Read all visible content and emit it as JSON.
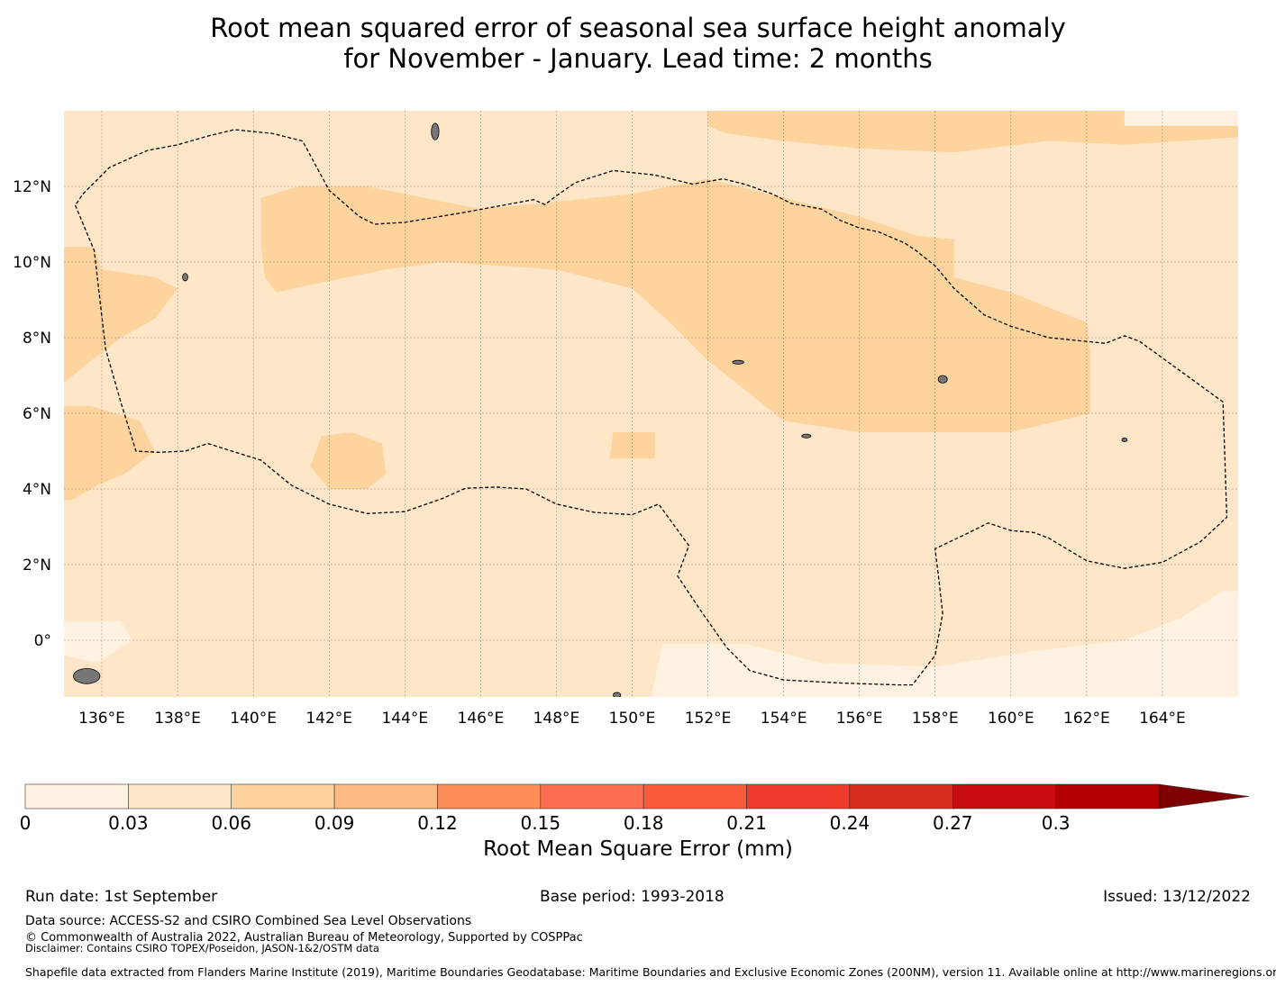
{
  "title": {
    "line1": "Root mean squared error of seasonal sea surface height anomaly",
    "line2": "for November - January. Lead time: 2 months"
  },
  "map": {
    "lon_range": [
      135,
      166
    ],
    "lat_range": [
      -1.5,
      14
    ],
    "lon_ticks": [
      {
        "value": 136,
        "label": "136°E"
      },
      {
        "value": 138,
        "label": "138°E"
      },
      {
        "value": 140,
        "label": "140°E"
      },
      {
        "value": 142,
        "label": "142°E"
      },
      {
        "value": 144,
        "label": "144°E"
      },
      {
        "value": 146,
        "label": "146°E"
      },
      {
        "value": 148,
        "label": "148°E"
      },
      {
        "value": 150,
        "label": "150°E"
      },
      {
        "value": 152,
        "label": "152°E"
      },
      {
        "value": 154,
        "label": "154°E"
      },
      {
        "value": 156,
        "label": "156°E"
      },
      {
        "value": 158,
        "label": "158°E"
      },
      {
        "value": 160,
        "label": "160°E"
      },
      {
        "value": 162,
        "label": "162°E"
      },
      {
        "value": 164,
        "label": "164°E"
      }
    ],
    "lat_ticks": [
      {
        "value": 12,
        "label": "12°N"
      },
      {
        "value": 10,
        "label": "10°N"
      },
      {
        "value": 8,
        "label": "8°N"
      },
      {
        "value": 6,
        "label": "6°N"
      },
      {
        "value": 4,
        "label": "4°N"
      },
      {
        "value": 2,
        "label": "2°N"
      },
      {
        "value": 0,
        "label": "0°"
      }
    ],
    "colors": {
      "bin_0_03": "#fff2e0",
      "bin_03_06": "#fee7c8",
      "bin_06_09": "#fdd49e",
      "land": "#777777",
      "boundary": "#000000",
      "grid": "#555555"
    },
    "field_regions": [
      {
        "bin": "bin_06_09",
        "points": [
          [
            140.2,
            11.7
          ],
          [
            141.2,
            12.0
          ],
          [
            143,
            12.0
          ],
          [
            146,
            11.4
          ],
          [
            150,
            11.8
          ],
          [
            152,
            12.2
          ],
          [
            154,
            11.7
          ],
          [
            156,
            11.2
          ],
          [
            157.5,
            10.7
          ],
          [
            158.5,
            10.6
          ],
          [
            158.5,
            9.6
          ],
          [
            160,
            9.2
          ],
          [
            162,
            8.4
          ],
          [
            162.1,
            7.6
          ],
          [
            162.1,
            6.0
          ],
          [
            160,
            5.5
          ],
          [
            157,
            5.5
          ],
          [
            156,
            5.5
          ],
          [
            154,
            5.8
          ],
          [
            153,
            6.6
          ],
          [
            152,
            7.4
          ],
          [
            151,
            8.4
          ],
          [
            150,
            9.3
          ],
          [
            148,
            9.8
          ],
          [
            145,
            10.0
          ],
          [
            143.5,
            9.8
          ],
          [
            142,
            9.5
          ],
          [
            140.6,
            9.2
          ],
          [
            140.3,
            9.6
          ],
          [
            140.2,
            10.5
          ]
        ]
      },
      {
        "bin": "bin_06_09",
        "points": [
          [
            135,
            10.4
          ],
          [
            135.8,
            10.4
          ],
          [
            136,
            9.8
          ],
          [
            137.4,
            9.6
          ],
          [
            138,
            9.3
          ],
          [
            137.4,
            8.5
          ],
          [
            136.5,
            8.0
          ],
          [
            135.6,
            7.3
          ],
          [
            135,
            6.8
          ]
        ]
      },
      {
        "bin": "bin_06_09",
        "points": [
          [
            135,
            6.2
          ],
          [
            135.7,
            6.2
          ],
          [
            137,
            5.8
          ],
          [
            137.4,
            5.0
          ],
          [
            136.6,
            4.4
          ],
          [
            135.9,
            4.1
          ],
          [
            135.2,
            3.7
          ],
          [
            135,
            3.7
          ]
        ]
      },
      {
        "bin": "bin_06_09",
        "points": [
          [
            141.8,
            5.4
          ],
          [
            142.6,
            5.5
          ],
          [
            143.4,
            5.2
          ],
          [
            143.5,
            4.4
          ],
          [
            143,
            4.0
          ],
          [
            142,
            4.0
          ],
          [
            141.5,
            4.6
          ]
        ]
      },
      {
        "bin": "bin_06_09",
        "points": [
          [
            149.5,
            5.5
          ],
          [
            150.6,
            5.5
          ],
          [
            150.6,
            4.8
          ],
          [
            149.4,
            4.8
          ]
        ]
      },
      {
        "bin": "bin_06_09",
        "points": [
          [
            152,
            14
          ],
          [
            166,
            14
          ],
          [
            166,
            13.3
          ],
          [
            163,
            13.1
          ],
          [
            161,
            13.2
          ],
          [
            158.5,
            12.9
          ],
          [
            156,
            13.0
          ],
          [
            154,
            13.2
          ],
          [
            152.5,
            13.4
          ],
          [
            152,
            13.6
          ]
        ]
      },
      {
        "bin": "bin_0_03",
        "points": [
          [
            135,
            0.5
          ],
          [
            136.5,
            0.5
          ],
          [
            136.8,
            0.0
          ],
          [
            135.9,
            -0.6
          ],
          [
            135,
            -0.4
          ]
        ]
      },
      {
        "bin": "bin_0_03",
        "points": [
          [
            150.8,
            -0.1
          ],
          [
            153,
            -0.1
          ],
          [
            155,
            -0.6
          ],
          [
            158,
            -0.7
          ],
          [
            160.5,
            -0.3
          ],
          [
            163,
            0.0
          ],
          [
            164.5,
            0.6
          ],
          [
            165.6,
            1.3
          ],
          [
            166,
            1.3
          ],
          [
            166,
            -1.5
          ],
          [
            150.5,
            -1.5
          ]
        ]
      },
      {
        "bin": "bin_0_03",
        "points": [
          [
            163,
            13.6
          ],
          [
            166,
            13.6
          ],
          [
            166,
            14
          ],
          [
            163,
            14
          ]
        ]
      }
    ],
    "eez_boundaries": [
      [
        [
          135.3,
          11.5
        ],
        [
          135.8,
          10.3
        ],
        [
          136.1,
          7.7
        ],
        [
          136.5,
          6.3
        ],
        [
          136.9,
          5.0
        ],
        [
          137.5,
          4.97
        ],
        [
          138.2,
          5.0
        ],
        [
          138.8,
          5.2
        ],
        [
          140.2,
          4.76
        ],
        [
          141,
          4.1
        ],
        [
          142,
          3.6
        ],
        [
          143,
          3.35
        ],
        [
          144,
          3.4
        ],
        [
          145,
          3.75
        ],
        [
          145.6,
          4.02
        ],
        [
          146.4,
          4.05
        ],
        [
          147.2,
          4.0
        ],
        [
          148,
          3.6
        ],
        [
          149,
          3.38
        ],
        [
          150,
          3.32
        ],
        [
          150.7,
          3.6
        ],
        [
          151.5,
          2.5
        ],
        [
          151.2,
          1.7
        ],
        [
          151.8,
          0.8
        ],
        [
          152.5,
          -0.2
        ],
        [
          153.1,
          -0.8
        ],
        [
          154,
          -1.05
        ],
        [
          155.5,
          -1.13
        ],
        [
          157,
          -1.18
        ],
        [
          157.4,
          -1.18
        ],
        [
          158,
          -0.4
        ],
        [
          158.2,
          0.7
        ],
        [
          158.1,
          1.6
        ],
        [
          158,
          2.42
        ],
        [
          158.8,
          2.8
        ],
        [
          159.4,
          3.1
        ],
        [
          160,
          2.9
        ],
        [
          160.6,
          2.85
        ],
        [
          161,
          2.7
        ],
        [
          162,
          2.1
        ],
        [
          163,
          1.9
        ],
        [
          164,
          2.06
        ],
        [
          165,
          2.6
        ],
        [
          165.7,
          3.25
        ],
        [
          165.6,
          6.3
        ],
        [
          164.5,
          7.1
        ],
        [
          163.4,
          7.9
        ],
        [
          163,
          8.05
        ],
        [
          162.5,
          7.85
        ],
        [
          161,
          8.0
        ],
        [
          160,
          8.3
        ],
        [
          159.3,
          8.6
        ],
        [
          158.5,
          9.3
        ],
        [
          158,
          9.9
        ],
        [
          157.5,
          10.3
        ],
        [
          157.2,
          10.5
        ],
        [
          156.5,
          10.8
        ],
        [
          156,
          10.9
        ],
        [
          155.5,
          11.1
        ],
        [
          155,
          11.4
        ],
        [
          154.2,
          11.55
        ],
        [
          153.7,
          11.8
        ],
        [
          153,
          12.05
        ],
        [
          152.4,
          12.2
        ],
        [
          151.6,
          12.06
        ],
        [
          150.6,
          12.3
        ],
        [
          149.5,
          12.42
        ],
        [
          148.5,
          12.1
        ],
        [
          148,
          11.75
        ],
        [
          147.7,
          11.52
        ],
        [
          147.4,
          11.65
        ],
        [
          145.5,
          11.3
        ],
        [
          144,
          11.05
        ],
        [
          143.2,
          11.0
        ],
        [
          142.8,
          11.2
        ],
        [
          142,
          11.9
        ],
        [
          141.3,
          13.2
        ],
        [
          140.5,
          13.4
        ],
        [
          139.5,
          13.5
        ],
        [
          138.8,
          13.33
        ],
        [
          138,
          13.1
        ],
        [
          137.2,
          12.95
        ],
        [
          136.2,
          12.5
        ],
        [
          135.5,
          11.8
        ],
        [
          135.3,
          11.5
        ]
      ]
    ],
    "islands": [
      {
        "lon": 144.8,
        "lat": 13.45,
        "rx": 0.1,
        "ry": 0.22
      },
      {
        "lon": 158.2,
        "lat": 6.9,
        "rx": 0.12,
        "ry": 0.1
      },
      {
        "lon": 163.0,
        "lat": 5.3,
        "rx": 0.07,
        "ry": 0.05
      },
      {
        "lon": 152.8,
        "lat": 7.35,
        "rx": 0.15,
        "ry": 0.05
      },
      {
        "lon": 134.5,
        "lat": 7.5,
        "rx": 0.07,
        "ry": 0.12
      },
      {
        "lon": 135.6,
        "lat": -0.95,
        "rx": 0.35,
        "ry": 0.2
      },
      {
        "lon": 138.2,
        "lat": 9.6,
        "rx": 0.07,
        "ry": 0.1
      },
      {
        "lon": 149.6,
        "lat": -1.45,
        "rx": 0.1,
        "ry": 0.07
      },
      {
        "lon": 154.6,
        "lat": 5.4,
        "rx": 0.12,
        "ry": 0.05
      }
    ]
  },
  "colorbar": {
    "ticks": [
      "0",
      "0.03",
      "0.06",
      "0.09",
      "0.12",
      "0.15",
      "0.18",
      "0.21",
      "0.24",
      "0.27",
      "0.3"
    ],
    "colors": [
      "#fff2e0",
      "#fee7c8",
      "#fdd49e",
      "#fdbb84",
      "#fc8d59",
      "#fd6d4f",
      "#fb5a3d",
      "#ef3b2c",
      "#d62f1f",
      "#c70b0f",
      "#b30000"
    ],
    "extend_color": "#7f0000",
    "label": "Root Mean Square Error (mm)"
  },
  "footer": {
    "run_date": "Run date: 1st September",
    "base_period": "Base period: 1993-2018",
    "issued": "Issued: 13/12/2022",
    "data_source": "Data source: ACCESS-S2 and CSIRO Combined Sea Level Observations",
    "copyright": "© Commonwealth of Australia 2022, Australian Bureau of Meteorology, Supported by COSPPac",
    "disclaimer": "Disclaimer: Contains CSIRO TOPEX/Poseidon, JASON-1&2/OSTM data",
    "shapefile": "Shapefile data extracted from Flanders Marine Institute (2019), Maritime Boundaries Geodatabase: Maritime Boundaries and Exclusive Economic Zones (200NM), version 11. Available online at http://www.marineregions.org/."
  }
}
